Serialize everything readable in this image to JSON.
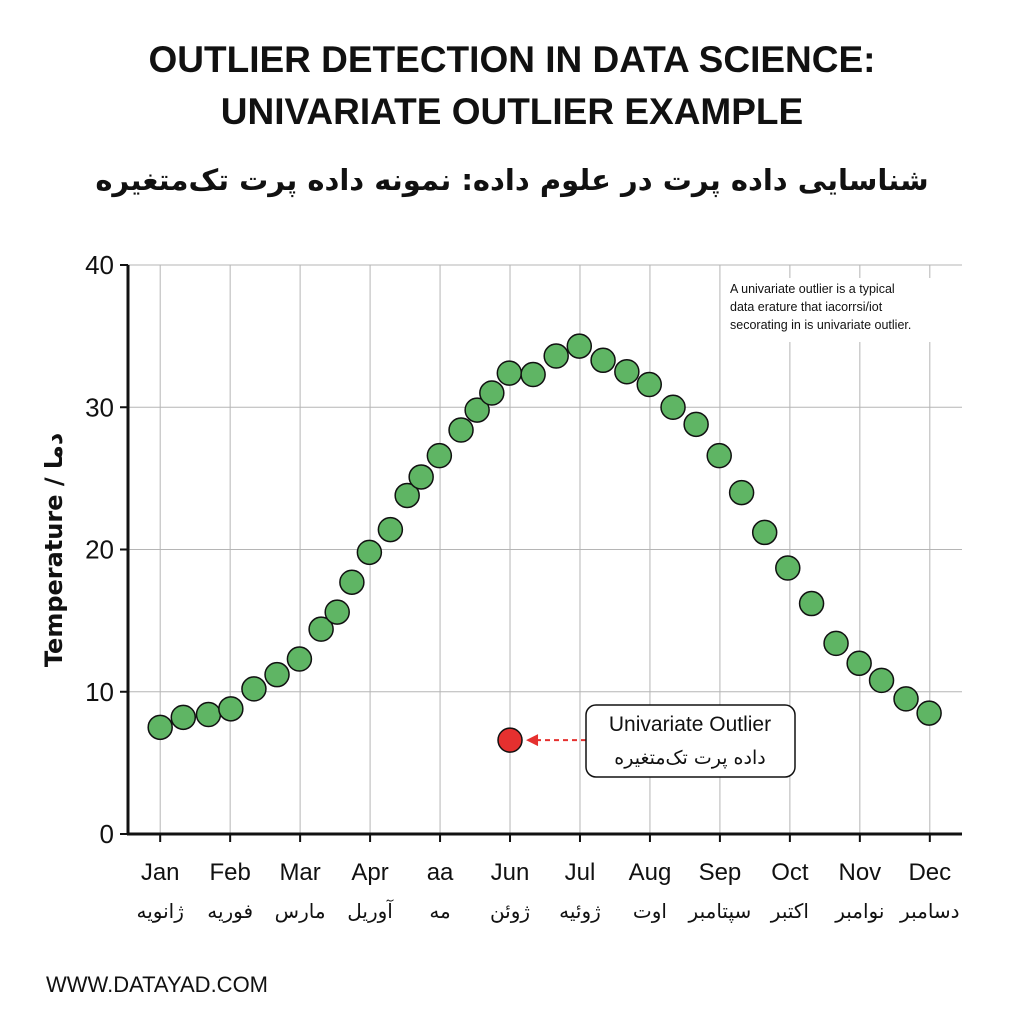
{
  "chart_data": {
    "type": "scatter",
    "title": [
      "OUTLIER DETECTION IN DATA SCIENCE:",
      "UNIVARIATE OUTLIER EXAMPLE"
    ],
    "subtitle": "شناسایی داده پرت در علوم داده: نمونه داده پرت تک‌متغیره",
    "y_label": "Temperature / دما",
    "xlim": [
      0.54,
      12.46
    ],
    "xticks": [
      {
        "value": 1,
        "label": "Jan"
      },
      {
        "value": 2,
        "label": "Feb"
      },
      {
        "value": 3,
        "label": "Mar"
      },
      {
        "value": 4,
        "label": "Apr"
      },
      {
        "value": 5,
        "label": "aa"
      },
      {
        "value": 6,
        "label": "Jun"
      },
      {
        "value": 7,
        "label": "Jul"
      },
      {
        "value": 8,
        "label": "Aug"
      },
      {
        "value": 9,
        "label": "Sep"
      },
      {
        "value": 10,
        "label": "Oct"
      },
      {
        "value": 11,
        "label": "Nov"
      },
      {
        "value": 12,
        "label": "Dec"
      }
    ],
    "xtick_labels_fa": [
      "ژانویه",
      "فوریه",
      "مارس",
      "آوریل",
      "مه",
      "ژوئن",
      "ژوئیه",
      "اوت",
      "سپتامبر",
      "اکتبر",
      "نوامبر",
      "دسامبر"
    ],
    "ylim": [
      0,
      40
    ],
    "yticks": [
      0,
      10,
      20,
      30,
      40
    ],
    "grid": true,
    "series": [
      {
        "color": "#5fb564",
        "x": [
          1.0,
          1.33,
          1.69,
          2.01,
          2.34,
          2.67,
          2.99,
          3.3,
          3.53,
          3.74,
          3.99,
          4.29,
          4.53,
          4.73,
          4.99,
          5.3,
          5.53,
          5.74,
          5.99,
          6.33,
          6.66,
          6.99,
          7.33,
          7.67,
          7.99,
          8.33,
          8.66,
          8.99,
          9.31,
          9.64,
          9.97,
          10.31,
          10.66,
          10.99,
          11.31,
          11.66,
          11.99
        ],
        "values": [
          7.5,
          8.2,
          8.4,
          8.8,
          10.2,
          11.2,
          12.3,
          14.4,
          15.6,
          17.7,
          19.8,
          21.4,
          23.8,
          25.1,
          26.6,
          28.4,
          29.8,
          31.0,
          32.4,
          32.3,
          33.6,
          34.3,
          33.3,
          32.5,
          31.6,
          30.0,
          28.8,
          26.6,
          24.0,
          21.2,
          18.7,
          16.2,
          13.4,
          12.0,
          10.8,
          9.5,
          8.5
        ]
      },
      {
        "color": "#e5302f",
        "x": [
          6.0
        ],
        "values": [
          6.6
        ]
      }
    ],
    "annotations": [
      {
        "text": [
          "A univariate outlier is a typical",
          "data erature that iacorrsi/iot",
          "secorating in is univariate outlier."
        ]
      },
      {
        "text": [
          "Univariate Outlier",
          "داده پرت تک‌متغیره"
        ]
      }
    ],
    "footer": "WWW.DATAYAD.COM"
  }
}
